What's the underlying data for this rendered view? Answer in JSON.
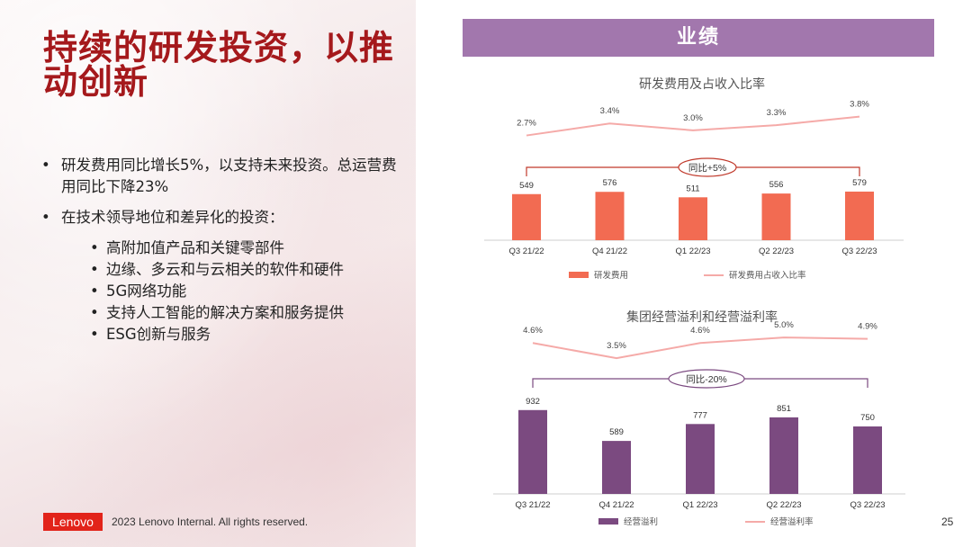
{
  "slide": {
    "title": "持续的研发投资，以推动创新",
    "bullets": [
      "研发费用同比增长5%，以支持未来投资。总运营费用同比下降23%",
      "在技术领导地位和差异化的投资："
    ],
    "sub_bullets": [
      "高附加值产品和关键零部件",
      "边缘、多云和与云相关的软件和硬件",
      "5G网络功能",
      "支持人工智能的解决方案和服务提供",
      "ESG创新与服务"
    ],
    "logo_text": "Lenovo",
    "copyright": "2023 Lenovo Internal. All rights reserved.",
    "page_number": "25",
    "banner": "业绩"
  },
  "chart_data": [
    {
      "type": "bar",
      "title": "研发费用及占收入比率",
      "categories": [
        "Q3 21/22",
        "Q4 21/22",
        "Q1 22/23",
        "Q2 22/23",
        "Q3 22/23"
      ],
      "series": [
        {
          "name": "研发费用",
          "type": "bar",
          "values": [
            549,
            576,
            511,
            556,
            579
          ],
          "labels": [
            "549",
            "576",
            "511",
            "556",
            "579"
          ]
        },
        {
          "name": "研发费用占收入比率",
          "type": "line",
          "values": [
            2.7,
            3.4,
            3.0,
            3.3,
            3.8
          ],
          "labels": [
            "2.7%",
            "3.4%",
            "3.0%",
            "3.3%",
            "3.8%"
          ]
        }
      ],
      "annotation": "同比+5%",
      "bar_color": "#f26b52",
      "line_color": "#f5aaa8",
      "annotation_color": "#c0392b",
      "ylim": [
        0,
        1200
      ],
      "line_ylim": [
        0,
        4.2
      ]
    },
    {
      "type": "bar",
      "title": "集团经营溢利和经营溢利率",
      "categories": [
        "Q3 21/22",
        "Q4 21/22",
        "Q1 22/23",
        "Q2 22/23",
        "Q3 22/23"
      ],
      "series": [
        {
          "name": "经营溢利",
          "type": "bar",
          "values": [
            932,
            589,
            777,
            851,
            750
          ],
          "labels": [
            "932",
            "589",
            "777",
            "851",
            "750"
          ]
        },
        {
          "name": "经营溢利率",
          "type": "line",
          "values": [
            4.6,
            3.5,
            4.6,
            5.0,
            4.9
          ],
          "labels": [
            "4.6%",
            "3.5%",
            "4.6%",
            "5.0%",
            "4.9%"
          ]
        }
      ],
      "annotation": "同比-20%",
      "bar_color": "#7b4a80",
      "line_color": "#f5aaa8",
      "annotation_color": "#7b4a80",
      "ylim": [
        0,
        1000
      ],
      "line_ylim": [
        0,
        5.2
      ]
    }
  ]
}
